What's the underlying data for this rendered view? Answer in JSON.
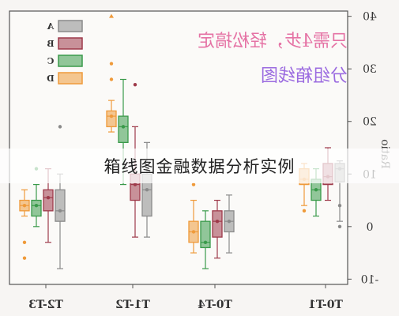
{
  "caption": "箱线图金融数据分析实例",
  "watermark": {
    "line1": "只需4步，轻松搞定",
    "line2": "分组箱线图"
  },
  "chart_data": {
    "type": "box",
    "mirrored": true,
    "ylabel": "Ratio",
    "ylim": [
      -11,
      41
    ],
    "yticks": [
      -10,
      0,
      10,
      20,
      30,
      40
    ],
    "categories": [
      "T0-T1",
      "T0-T4",
      "T1-T2",
      "T2-T3"
    ],
    "legend": {
      "placement": "top-right",
      "entries": [
        "A",
        "B",
        "C",
        "D"
      ]
    },
    "series": [
      {
        "name": "A",
        "color": "#8a8a8a",
        "boxes": [
          {
            "min": 1,
            "q1": 8.5,
            "median": 11,
            "q3": 12,
            "max": 12.5,
            "mean": 11,
            "outliers": [
              4,
              0
            ]
          },
          {
            "min": -5,
            "q1": -1,
            "median": 1,
            "q3": 3,
            "max": 6,
            "mean": 1,
            "outliers": []
          },
          {
            "min": -2,
            "q1": 2,
            "median": 7,
            "q3": 10,
            "max": 16,
            "mean": 7,
            "outliers": []
          },
          {
            "min": -8,
            "q1": 1,
            "median": 3,
            "q3": 7,
            "max": 10,
            "mean": 3,
            "outliers": [
              19
            ]
          }
        ]
      },
      {
        "name": "B",
        "color": "#9e3a4a",
        "boxes": [
          {
            "min": 5,
            "q1": 8,
            "median": 9.5,
            "q3": 12,
            "max": 15,
            "mean": 9.5,
            "outliers": []
          },
          {
            "min": -6,
            "q1": -2,
            "median": 1,
            "q3": 3,
            "max": 5,
            "mean": 1,
            "outliers": []
          },
          {
            "min": -2,
            "q1": 5,
            "median": 8,
            "q3": 10,
            "max": 19,
            "mean": 8,
            "outliers": [
              27
            ]
          },
          {
            "min": -3,
            "q1": 3,
            "median": 5.5,
            "q3": 7,
            "max": 11,
            "mean": 5.5,
            "outliers": []
          }
        ]
      },
      {
        "name": "C",
        "color": "#3a9a4a",
        "boxes": [
          {
            "min": 2,
            "q1": 5,
            "median": 7,
            "q3": 9,
            "max": 11,
            "mean": 7,
            "outliers": []
          },
          {
            "min": -8,
            "q1": -4,
            "median": -3,
            "q3": 1,
            "max": 3,
            "mean": -3,
            "outliers": []
          },
          {
            "min": 8,
            "q1": 16,
            "median": 19,
            "q3": 21,
            "max": 28,
            "mean": 19,
            "outliers": []
          },
          {
            "min": 0,
            "q1": 2,
            "median": 4,
            "q3": 5,
            "max": 8,
            "mean": 4,
            "outliers": [
              11
            ]
          }
        ]
      },
      {
        "name": "D",
        "color": "#ef9a3a",
        "boxes": [
          {
            "min": 4,
            "q1": 8,
            "median": 9,
            "q3": 11,
            "max": 12,
            "mean": 9,
            "outliers": [
              3
            ]
          },
          {
            "min": -5,
            "q1": -3,
            "median": -1,
            "q3": 1,
            "max": 5,
            "mean": -1,
            "outliers": [
              8
            ]
          },
          {
            "min": 18,
            "q1": 19,
            "median": 21,
            "q3": 22,
            "max": 24,
            "mean": 21,
            "outliers": [
              28,
              31,
              40
            ]
          },
          {
            "min": 2,
            "q1": 3,
            "median": 4,
            "q3": 5,
            "max": 7,
            "mean": 4,
            "outliers": [
              -3,
              -6
            ]
          }
        ]
      }
    ]
  }
}
